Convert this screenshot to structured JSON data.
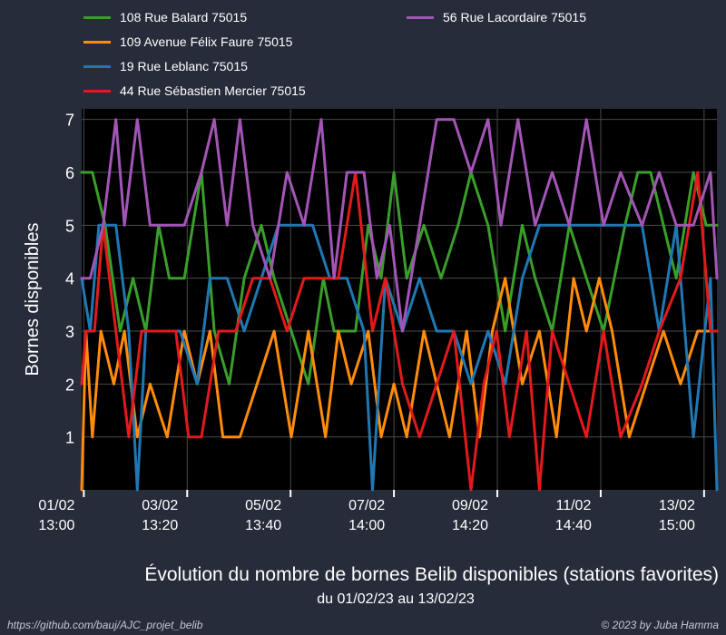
{
  "chart_data": {
    "type": "line",
    "title": "Évolution du nombre de bornes Belib disponibles (stations favorites)",
    "subtitle": "du 01/02/23 au 13/02/23",
    "ylabel": "Bornes disponibles",
    "xlabel": "",
    "ylim": [
      0,
      7.2
    ],
    "yticks": [
      1,
      2,
      3,
      4,
      5,
      6,
      7
    ],
    "xlim": [
      "2023-02-01 12:00",
      "2023-02-13 21:00"
    ],
    "xticks": [
      {
        "x": "2023-02-01 13:00",
        "label": "01/02\n13:00"
      },
      {
        "x": "2023-02-03 13:20",
        "label": "03/02\n13:20"
      },
      {
        "x": "2023-02-05 13:40",
        "label": "05/02\n13:40"
      },
      {
        "x": "2023-02-07 14:00",
        "label": "07/02\n14:00"
      },
      {
        "x": "2023-02-09 14:20",
        "label": "09/02\n14:20"
      },
      {
        "x": "2023-02-11 14:40",
        "label": "11/02\n14:40"
      },
      {
        "x": "2023-02-13 15:00",
        "label": "13/02\n15:00"
      }
    ],
    "grid": true,
    "legend_position": "top",
    "background": "#000000",
    "series": [
      {
        "name": "108 Rue Balard 75015",
        "color": "#3a9e2a",
        "points": [
          [
            "2023-02-01 12:00",
            6
          ],
          [
            "2023-02-01 17:00",
            6
          ],
          [
            "2023-02-01 23:00",
            5
          ],
          [
            "2023-02-02 06:00",
            3
          ],
          [
            "2023-02-02 12:00",
            4
          ],
          [
            "2023-02-02 18:00",
            3
          ],
          [
            "2023-02-03 00:00",
            5
          ],
          [
            "2023-02-03 05:00",
            4
          ],
          [
            "2023-02-03 12:00",
            4
          ],
          [
            "2023-02-03 20:00",
            6
          ],
          [
            "2023-02-04 02:00",
            3
          ],
          [
            "2023-02-04 09:00",
            2
          ],
          [
            "2023-02-04 16:00",
            4
          ],
          [
            "2023-02-05 00:00",
            5
          ],
          [
            "2023-02-05 06:00",
            4
          ],
          [
            "2023-02-05 14:00",
            3
          ],
          [
            "2023-02-05 22:00",
            2
          ],
          [
            "2023-02-06 05:00",
            4
          ],
          [
            "2023-02-06 10:00",
            3
          ],
          [
            "2023-02-06 20:00",
            3
          ],
          [
            "2023-02-07 02:00",
            5
          ],
          [
            "2023-02-07 08:00",
            4
          ],
          [
            "2023-02-07 14:00",
            6
          ],
          [
            "2023-02-07 20:00",
            4
          ],
          [
            "2023-02-08 04:00",
            5
          ],
          [
            "2023-02-08 12:00",
            4
          ],
          [
            "2023-02-08 20:00",
            5
          ],
          [
            "2023-02-09 02:00",
            6
          ],
          [
            "2023-02-09 10:00",
            5
          ],
          [
            "2023-02-09 18:00",
            3
          ],
          [
            "2023-02-10 02:00",
            5
          ],
          [
            "2023-02-10 08:00",
            4
          ],
          [
            "2023-02-10 16:00",
            3
          ],
          [
            "2023-02-11 00:00",
            5
          ],
          [
            "2023-02-11 08:00",
            4
          ],
          [
            "2023-02-11 16:00",
            3
          ],
          [
            "2023-02-12 02:00",
            5
          ],
          [
            "2023-02-12 08:00",
            6
          ],
          [
            "2023-02-12 14:00",
            6
          ],
          [
            "2023-02-12 20:00",
            5
          ],
          [
            "2023-02-13 02:00",
            4
          ],
          [
            "2023-02-13 10:00",
            6
          ],
          [
            "2023-02-13 16:00",
            5
          ],
          [
            "2023-02-13 21:00",
            5
          ]
        ]
      },
      {
        "name": "109 Avenue Félix Faure 75015",
        "color": "#ff8c0a",
        "points": [
          [
            "2023-02-01 12:00",
            0
          ],
          [
            "2023-02-01 14:00",
            3
          ],
          [
            "2023-02-01 17:00",
            1
          ],
          [
            "2023-02-01 21:00",
            3
          ],
          [
            "2023-02-02 03:00",
            2
          ],
          [
            "2023-02-02 08:00",
            3
          ],
          [
            "2023-02-02 14:00",
            1
          ],
          [
            "2023-02-02 20:00",
            2
          ],
          [
            "2023-02-03 04:00",
            1
          ],
          [
            "2023-02-03 12:00",
            3
          ],
          [
            "2023-02-03 18:00",
            2
          ],
          [
            "2023-02-04 00:00",
            3
          ],
          [
            "2023-02-04 06:00",
            1
          ],
          [
            "2023-02-04 14:00",
            1
          ],
          [
            "2023-02-04 22:00",
            2
          ],
          [
            "2023-02-05 06:00",
            3
          ],
          [
            "2023-02-05 14:00",
            1
          ],
          [
            "2023-02-05 22:00",
            3
          ],
          [
            "2023-02-06 06:00",
            1
          ],
          [
            "2023-02-06 12:00",
            3
          ],
          [
            "2023-02-06 18:00",
            2
          ],
          [
            "2023-02-07 02:00",
            3
          ],
          [
            "2023-02-07 08:00",
            1
          ],
          [
            "2023-02-07 14:00",
            2
          ],
          [
            "2023-02-07 20:00",
            1
          ],
          [
            "2023-02-08 04:00",
            3
          ],
          [
            "2023-02-08 10:00",
            2
          ],
          [
            "2023-02-08 16:00",
            1
          ],
          [
            "2023-02-09 00:00",
            3
          ],
          [
            "2023-02-09 06:00",
            1
          ],
          [
            "2023-02-09 12:00",
            3
          ],
          [
            "2023-02-09 18:00",
            4
          ],
          [
            "2023-02-10 02:00",
            2
          ],
          [
            "2023-02-10 10:00",
            3
          ],
          [
            "2023-02-10 18:00",
            1
          ],
          [
            "2023-02-11 02:00",
            4
          ],
          [
            "2023-02-11 08:00",
            3
          ],
          [
            "2023-02-11 14:00",
            4
          ],
          [
            "2023-02-11 20:00",
            3
          ],
          [
            "2023-02-12 04:00",
            1
          ],
          [
            "2023-02-12 12:00",
            2
          ],
          [
            "2023-02-12 20:00",
            3
          ],
          [
            "2023-02-13 04:00",
            2
          ],
          [
            "2023-02-13 12:00",
            3
          ],
          [
            "2023-02-13 21:00",
            3
          ]
        ]
      },
      {
        "name": "19 Rue Leblanc 75015",
        "color": "#1f78b4",
        "points": [
          [
            "2023-02-01 12:00",
            4
          ],
          [
            "2023-02-01 16:00",
            3
          ],
          [
            "2023-02-01 20:00",
            5
          ],
          [
            "2023-02-02 04:00",
            5
          ],
          [
            "2023-02-02 10:00",
            3
          ],
          [
            "2023-02-02 14:00",
            0
          ],
          [
            "2023-02-02 18:00",
            3
          ],
          [
            "2023-02-03 02:00",
            3
          ],
          [
            "2023-02-03 10:00",
            3
          ],
          [
            "2023-02-03 18:00",
            2
          ],
          [
            "2023-02-04 00:00",
            4
          ],
          [
            "2023-02-04 08:00",
            4
          ],
          [
            "2023-02-04 16:00",
            3
          ],
          [
            "2023-02-05 00:00",
            4
          ],
          [
            "2023-02-05 08:00",
            5
          ],
          [
            "2023-02-05 16:00",
            5
          ],
          [
            "2023-02-06 00:00",
            5
          ],
          [
            "2023-02-06 08:00",
            4
          ],
          [
            "2023-02-06 16:00",
            4
          ],
          [
            "2023-02-07 00:00",
            3
          ],
          [
            "2023-02-07 04:00",
            0
          ],
          [
            "2023-02-07 10:00",
            4
          ],
          [
            "2023-02-07 18:00",
            3
          ],
          [
            "2023-02-08 02:00",
            4
          ],
          [
            "2023-02-08 10:00",
            3
          ],
          [
            "2023-02-08 18:00",
            3
          ],
          [
            "2023-02-09 02:00",
            2
          ],
          [
            "2023-02-09 10:00",
            3
          ],
          [
            "2023-02-09 18:00",
            2
          ],
          [
            "2023-02-10 02:00",
            4
          ],
          [
            "2023-02-10 10:00",
            5
          ],
          [
            "2023-02-10 18:00",
            5
          ],
          [
            "2023-02-11 02:00",
            5
          ],
          [
            "2023-02-11 10:00",
            5
          ],
          [
            "2023-02-11 18:00",
            5
          ],
          [
            "2023-02-12 02:00",
            5
          ],
          [
            "2023-02-12 10:00",
            5
          ],
          [
            "2023-02-12 18:00",
            3
          ],
          [
            "2023-02-13 02:00",
            5
          ],
          [
            "2023-02-13 10:00",
            1
          ],
          [
            "2023-02-13 18:00",
            4
          ],
          [
            "2023-02-13 21:00",
            0
          ]
        ]
      },
      {
        "name": "44 Rue Sébastien Mercier 75015",
        "color": "#e31a1c",
        "points": [
          [
            "2023-02-01 12:00",
            2
          ],
          [
            "2023-02-01 14:00",
            3
          ],
          [
            "2023-02-01 18:00",
            3
          ],
          [
            "2023-02-01 22:00",
            5
          ],
          [
            "2023-02-02 04:00",
            3
          ],
          [
            "2023-02-02 10:00",
            1
          ],
          [
            "2023-02-02 16:00",
            3
          ],
          [
            "2023-02-03 00:00",
            3
          ],
          [
            "2023-02-03 08:00",
            3
          ],
          [
            "2023-02-03 14:00",
            1
          ],
          [
            "2023-02-03 20:00",
            1
          ],
          [
            "2023-02-04 04:00",
            3
          ],
          [
            "2023-02-04 12:00",
            3
          ],
          [
            "2023-02-04 20:00",
            4
          ],
          [
            "2023-02-05 04:00",
            4
          ],
          [
            "2023-02-05 12:00",
            3
          ],
          [
            "2023-02-05 20:00",
            4
          ],
          [
            "2023-02-06 04:00",
            4
          ],
          [
            "2023-02-06 12:00",
            4
          ],
          [
            "2023-02-06 20:00",
            6
          ],
          [
            "2023-02-07 04:00",
            3
          ],
          [
            "2023-02-07 10:00",
            4
          ],
          [
            "2023-02-07 18:00",
            2
          ],
          [
            "2023-02-08 02:00",
            1
          ],
          [
            "2023-02-08 10:00",
            2
          ],
          [
            "2023-02-08 18:00",
            3
          ],
          [
            "2023-02-09 02:00",
            0
          ],
          [
            "2023-02-09 08:00",
            2
          ],
          [
            "2023-02-09 14:00",
            3
          ],
          [
            "2023-02-09 20:00",
            1
          ],
          [
            "2023-02-10 04:00",
            3
          ],
          [
            "2023-02-10 10:00",
            0
          ],
          [
            "2023-02-10 16:00",
            3
          ],
          [
            "2023-02-11 00:00",
            2
          ],
          [
            "2023-02-11 08:00",
            1
          ],
          [
            "2023-02-11 16:00",
            3
          ],
          [
            "2023-02-12 00:00",
            1
          ],
          [
            "2023-02-12 10:00",
            2
          ],
          [
            "2023-02-12 18:00",
            3
          ],
          [
            "2023-02-13 04:00",
            4
          ],
          [
            "2023-02-13 12:00",
            6
          ],
          [
            "2023-02-13 18:00",
            3
          ],
          [
            "2023-02-13 21:00",
            3
          ]
        ]
      },
      {
        "name": "56 Rue Lacordaire 75015",
        "color": "#a355b6",
        "points": [
          [
            "2023-02-01 12:00",
            4
          ],
          [
            "2023-02-01 16:00",
            4
          ],
          [
            "2023-02-01 22:00",
            5
          ],
          [
            "2023-02-02 04:00",
            7
          ],
          [
            "2023-02-02 08:00",
            5
          ],
          [
            "2023-02-02 14:00",
            7
          ],
          [
            "2023-02-02 20:00",
            5
          ],
          [
            "2023-02-03 04:00",
            5
          ],
          [
            "2023-02-03 12:00",
            5
          ],
          [
            "2023-02-03 20:00",
            6
          ],
          [
            "2023-02-04 02:00",
            7
          ],
          [
            "2023-02-04 08:00",
            5
          ],
          [
            "2023-02-04 14:00",
            7
          ],
          [
            "2023-02-04 20:00",
            5
          ],
          [
            "2023-02-05 04:00",
            4
          ],
          [
            "2023-02-05 12:00",
            6
          ],
          [
            "2023-02-05 20:00",
            5
          ],
          [
            "2023-02-06 04:00",
            7
          ],
          [
            "2023-02-06 10:00",
            4
          ],
          [
            "2023-02-06 16:00",
            6
          ],
          [
            "2023-02-07 00:00",
            6
          ],
          [
            "2023-02-07 06:00",
            4
          ],
          [
            "2023-02-07 12:00",
            5
          ],
          [
            "2023-02-07 18:00",
            3
          ],
          [
            "2023-02-08 02:00",
            5
          ],
          [
            "2023-02-08 10:00",
            7
          ],
          [
            "2023-02-08 18:00",
            7
          ],
          [
            "2023-02-09 02:00",
            6
          ],
          [
            "2023-02-09 10:00",
            7
          ],
          [
            "2023-02-09 16:00",
            5
          ],
          [
            "2023-02-10 00:00",
            7
          ],
          [
            "2023-02-10 08:00",
            5
          ],
          [
            "2023-02-10 16:00",
            6
          ],
          [
            "2023-02-11 00:00",
            5
          ],
          [
            "2023-02-11 08:00",
            7
          ],
          [
            "2023-02-11 16:00",
            5
          ],
          [
            "2023-02-12 00:00",
            6
          ],
          [
            "2023-02-12 10:00",
            5
          ],
          [
            "2023-02-12 18:00",
            6
          ],
          [
            "2023-02-13 02:00",
            5
          ],
          [
            "2023-02-13 10:00",
            5
          ],
          [
            "2023-02-13 18:00",
            6
          ],
          [
            "2023-02-13 21:00",
            4
          ]
        ]
      }
    ]
  },
  "footer": {
    "left": "https://github.com/bauj/AJC_projet_belib",
    "right": "© 2023 by Juba Hamma"
  }
}
